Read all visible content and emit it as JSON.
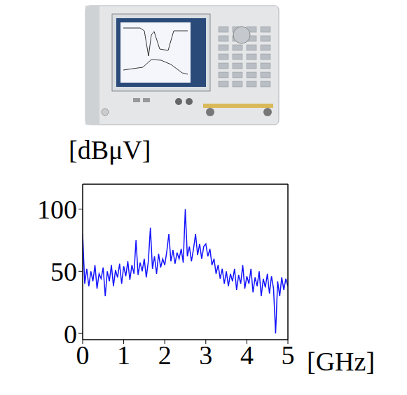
{
  "chart_data": {
    "type": "line",
    "x_label": "[GHz]",
    "y_label": "[dBμV]",
    "color": "#1414ff",
    "xlim": [
      0,
      5
    ],
    "ylim": [
      -5,
      120
    ],
    "xticks": [
      0,
      1,
      2,
      3,
      4,
      5
    ],
    "yticks": [
      0,
      50,
      100
    ],
    "grid": false,
    "x": [
      0,
      0.05,
      0.1,
      0.15,
      0.2,
      0.25,
      0.3,
      0.35,
      0.4,
      0.45,
      0.5,
      0.55,
      0.6,
      0.65,
      0.7,
      0.75,
      0.8,
      0.85,
      0.9,
      0.95,
      1.0,
      1.05,
      1.1,
      1.15,
      1.2,
      1.25,
      1.3,
      1.35,
      1.4,
      1.45,
      1.5,
      1.55,
      1.6,
      1.65,
      1.7,
      1.75,
      1.8,
      1.85,
      1.9,
      1.95,
      2.0,
      2.05,
      2.1,
      2.15,
      2.2,
      2.25,
      2.3,
      2.35,
      2.4,
      2.45,
      2.5,
      2.55,
      2.6,
      2.65,
      2.7,
      2.75,
      2.8,
      2.85,
      2.9,
      2.95,
      3.0,
      3.05,
      3.1,
      3.15,
      3.2,
      3.25,
      3.3,
      3.35,
      3.4,
      3.45,
      3.5,
      3.55,
      3.6,
      3.65,
      3.7,
      3.75,
      3.8,
      3.85,
      3.9,
      3.95,
      4.0,
      4.05,
      4.1,
      4.15,
      4.2,
      4.25,
      4.3,
      4.35,
      4.4,
      4.45,
      4.5,
      4.55,
      4.6,
      4.65,
      4.7,
      4.75,
      4.8,
      4.85,
      4.9,
      4.95,
      5.0
    ],
    "values": [
      80,
      40,
      52,
      38,
      50,
      42,
      55,
      36,
      48,
      44,
      53,
      30,
      50,
      42,
      55,
      38,
      51,
      45,
      56,
      40,
      54,
      46,
      58,
      43,
      55,
      48,
      75,
      47,
      57,
      50,
      60,
      45,
      58,
      85,
      52,
      62,
      48,
      64,
      53,
      60,
      55,
      66,
      80,
      58,
      67,
      56,
      65,
      60,
      68,
      57,
      100,
      62,
      70,
      58,
      68,
      80,
      63,
      72,
      60,
      70,
      72,
      62,
      68,
      55,
      60,
      48,
      55,
      44,
      52,
      40,
      50,
      38,
      48,
      42,
      52,
      35,
      47,
      40,
      55,
      36,
      46,
      40,
      52,
      33,
      45,
      38,
      50,
      30,
      44,
      37,
      48,
      32,
      46,
      36,
      0,
      42,
      30,
      45,
      35,
      44,
      38
    ]
  }
}
